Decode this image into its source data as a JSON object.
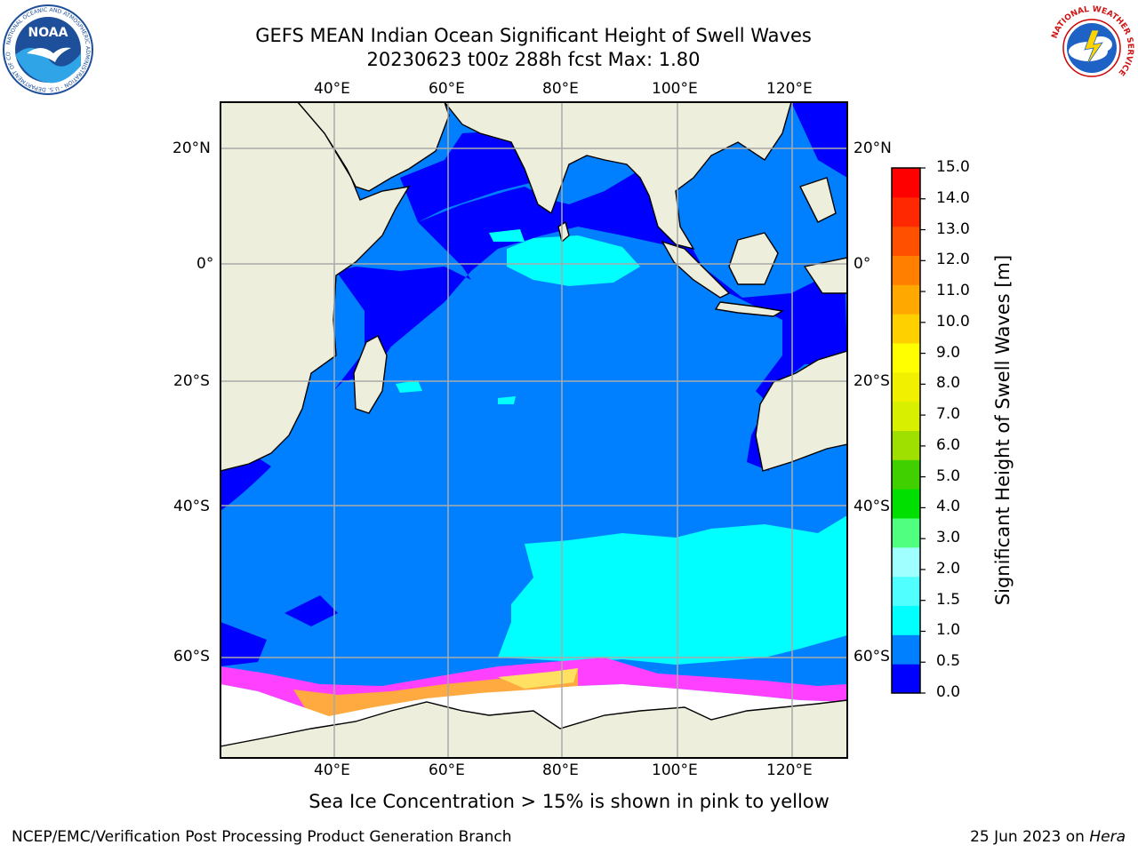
{
  "header": {
    "title_line1": "GEFS MEAN Indian Ocean Significant Height of Swell Waves",
    "title_line2": "20230623 t00z 288h fcst   Max: 1.80"
  },
  "logos": {
    "left": "NOAA",
    "left_ring": "NATIONAL OCEANIC AND ATMOSPHERIC ADMINISTRATION · U.S. DEPARTMENT OF COMMERCE",
    "right_ring": "NATIONAL WEATHER SERVICE"
  },
  "map": {
    "region": "Indian Ocean",
    "lon_range": [
      20,
      130
    ],
    "lat_range": [
      -72,
      28
    ],
    "lon_ticks": [
      "40°E",
      "60°E",
      "80°E",
      "100°E",
      "120°E"
    ],
    "lat_ticks_left": [
      "20°N",
      "0°",
      "20°S",
      "40°S",
      "60°S"
    ],
    "lat_ticks_right": [
      "20°N",
      "0°",
      "20°S",
      "40°S",
      "60°S"
    ],
    "fields": {
      "land": "#eeeedd",
      "ocean_low": "#0000ff",
      "ocean_main": "#0080ff",
      "swell_cyan": "#00ffff",
      "sea_ice_edge": "#ff40ff",
      "sea_ice_inner": "#ffaa40",
      "ice_free": "#ffffff",
      "gridline": "#aaaaaa"
    }
  },
  "colorbar": {
    "label": "Significant Height of Swell Waves [m]",
    "ticks": [
      "0.0",
      "0.5",
      "1.0",
      "1.5",
      "2.0",
      "3.0",
      "4.0",
      "5.0",
      "6.0",
      "7.0",
      "8.0",
      "9.0",
      "10.0",
      "11.0",
      "12.0",
      "13.0",
      "14.0",
      "15.0"
    ],
    "colors": [
      "#0000ff",
      "#0080ff",
      "#00ffff",
      "#50ffff",
      "#a0ffff",
      "#50ff80",
      "#00e000",
      "#40d000",
      "#a0e000",
      "#d8f000",
      "#f0f000",
      "#ffff00",
      "#ffd000",
      "#ffa800",
      "#ff8000",
      "#ff5000",
      "#ff2800",
      "#ff0000"
    ]
  },
  "footnote": "Sea Ice Concentration > 15% is shown in pink to yellow",
  "credits": {
    "left": "NCEP/EMC/Verification Post Processing Product Generation Branch",
    "right_date": "25 Jun 2023 on",
    "right_host": "Hera"
  }
}
